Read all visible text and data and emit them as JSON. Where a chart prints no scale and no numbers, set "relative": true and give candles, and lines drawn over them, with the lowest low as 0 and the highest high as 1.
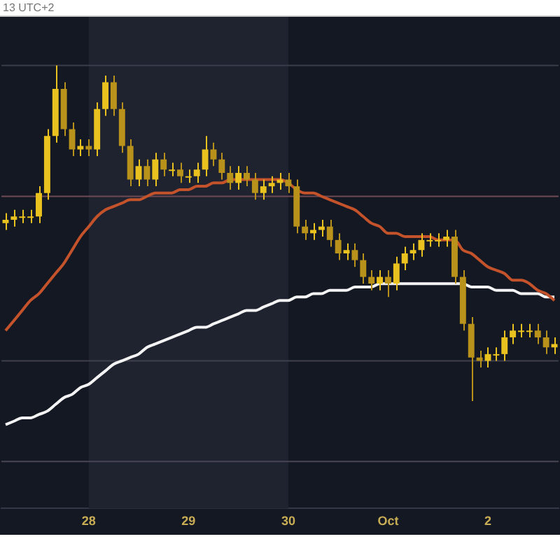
{
  "chart_data": {
    "type": "candlestick",
    "relative": true,
    "colors": [
      "#e9c21f",
      "#e9c21f",
      "#e9c21f",
      "#e9c21f",
      "#e9c21f",
      "#e9c21f",
      "#e9c21f",
      "#b8921a",
      "#b8921a",
      "#e9c21f",
      "#b8921a",
      "#e9c21f",
      "#e9c21f",
      "#b8921a",
      "#b8921a",
      "#b8921a",
      "#e9c21f",
      "#b8921a",
      "#e9c21f",
      "#b8921a",
      "#e9c21f",
      "#b8921a",
      "#e9c21f",
      "#e9c21f",
      "#e9c21f",
      "#b8921a",
      "#b8921a",
      "#b8921a",
      "#e9c21f",
      "#b8921a",
      "#b8921a",
      "#e9c21f",
      "#e9c21f",
      "#e9c21f",
      "#b8921a",
      "#b8921a",
      "#b8921a",
      "#e9c21f",
      "#e9c21f",
      "#b8921a",
      "#b8921a",
      "#e9c21f",
      "#b8921a",
      "#b8921a",
      "#b8921a",
      "#e9c21f",
      "#b8921a",
      "#e9c21f",
      "#e9c21f",
      "#e9c21f",
      "#e9c21f",
      "#e9c21f",
      "#e9c21f",
      "#e9c21f",
      "#b8921a",
      "#b8921a",
      "#b8921a",
      "#b8921a",
      "#e9c21f",
      "#e9c21f",
      "#e9c21f",
      "#e9c21f",
      "#e9c21f",
      "#e9c21f",
      "#b8921a",
      "#b8921a",
      "#e9c21f"
    ],
    "legend": false,
    "tick_labels": "x",
    "annotations": [
      "13 UTC+2"
    ],
    "categories": [
      null,
      null,
      null,
      null,
      null,
      null,
      null,
      null,
      null,
      null,
      "28",
      null,
      null,
      null,
      null,
      null,
      null,
      null,
      null,
      null,
      null,
      null,
      "29",
      null,
      null,
      null,
      null,
      null,
      null,
      null,
      null,
      null,
      null,
      null,
      "30",
      null,
      null,
      null,
      null,
      null,
      null,
      null,
      null,
      null,
      null,
      null,
      "Oct",
      null,
      null,
      null,
      null,
      null,
      null,
      null,
      null,
      null,
      null,
      null,
      "2",
      null,
      null,
      null,
      null,
      null,
      null,
      null,
      null
    ],
    "ohlc": [
      [
        0.53,
        0.56,
        0.51,
        0.54
      ],
      [
        0.54,
        0.57,
        0.52,
        0.55
      ],
      [
        0.55,
        0.57,
        0.53,
        0.55
      ],
      [
        0.55,
        0.57,
        0.53,
        0.55
      ],
      [
        0.55,
        0.64,
        0.53,
        0.62
      ],
      [
        0.62,
        0.81,
        0.6,
        0.79
      ],
      [
        0.79,
        1.0,
        0.77,
        0.93
      ],
      [
        0.93,
        0.95,
        0.79,
        0.81
      ],
      [
        0.81,
        0.83,
        0.73,
        0.75
      ],
      [
        0.75,
        0.78,
        0.73,
        0.76
      ],
      [
        0.76,
        0.78,
        0.73,
        0.75
      ],
      [
        0.75,
        0.89,
        0.73,
        0.87
      ],
      [
        0.87,
        0.97,
        0.85,
        0.95
      ],
      [
        0.95,
        0.97,
        0.85,
        0.87
      ],
      [
        0.87,
        0.89,
        0.74,
        0.76
      ],
      [
        0.76,
        0.78,
        0.64,
        0.66
      ],
      [
        0.66,
        0.72,
        0.64,
        0.7
      ],
      [
        0.7,
        0.72,
        0.64,
        0.66
      ],
      [
        0.66,
        0.74,
        0.64,
        0.72
      ],
      [
        0.72,
        0.74,
        0.67,
        0.69
      ],
      [
        0.69,
        0.71,
        0.67,
        0.69
      ],
      [
        0.69,
        0.71,
        0.65,
        0.67
      ],
      [
        0.67,
        0.69,
        0.65,
        0.67
      ],
      [
        0.67,
        0.71,
        0.65,
        0.69
      ],
      [
        0.69,
        0.79,
        0.67,
        0.75
      ],
      [
        0.75,
        0.77,
        0.7,
        0.72
      ],
      [
        0.72,
        0.74,
        0.66,
        0.68
      ],
      [
        0.68,
        0.7,
        0.63,
        0.65
      ],
      [
        0.65,
        0.7,
        0.63,
        0.68
      ],
      [
        0.68,
        0.7,
        0.64,
        0.66
      ],
      [
        0.66,
        0.68,
        0.6,
        0.62
      ],
      [
        0.62,
        0.66,
        0.6,
        0.64
      ],
      [
        0.64,
        0.67,
        0.62,
        0.65
      ],
      [
        0.65,
        0.68,
        0.63,
        0.66
      ],
      [
        0.66,
        0.68,
        0.62,
        0.64
      ],
      [
        0.64,
        0.66,
        0.5,
        0.52
      ],
      [
        0.52,
        0.54,
        0.48,
        0.5
      ],
      [
        0.5,
        0.53,
        0.48,
        0.51
      ],
      [
        0.51,
        0.54,
        0.49,
        0.52
      ],
      [
        0.52,
        0.54,
        0.46,
        0.48
      ],
      [
        0.48,
        0.5,
        0.42,
        0.44
      ],
      [
        0.44,
        0.47,
        0.42,
        0.45
      ],
      [
        0.45,
        0.47,
        0.4,
        0.42
      ],
      [
        0.42,
        0.44,
        0.35,
        0.37
      ],
      [
        0.37,
        0.39,
        0.33,
        0.35
      ],
      [
        0.35,
        0.39,
        0.33,
        0.37
      ],
      [
        0.37,
        0.39,
        0.31,
        0.35
      ],
      [
        0.35,
        0.43,
        0.33,
        0.41
      ],
      [
        0.41,
        0.46,
        0.39,
        0.44
      ],
      [
        0.44,
        0.47,
        0.42,
        0.45
      ],
      [
        0.45,
        0.5,
        0.43,
        0.48
      ],
      [
        0.48,
        0.5,
        0.46,
        0.48
      ],
      [
        0.48,
        0.5,
        0.46,
        0.48
      ],
      [
        0.48,
        0.51,
        0.46,
        0.49
      ],
      [
        0.49,
        0.51,
        0.35,
        0.37
      ],
      [
        0.37,
        0.39,
        0.21,
        0.23
      ],
      [
        0.23,
        0.25,
        0,
        0.13
      ],
      [
        0.13,
        0.15,
        0.1,
        0.12
      ],
      [
        0.12,
        0.16,
        0.1,
        0.14
      ],
      [
        0.14,
        0.16,
        0.12,
        0.14
      ],
      [
        0.14,
        0.21,
        0.12,
        0.19
      ],
      [
        0.19,
        0.23,
        0.17,
        0.21
      ],
      [
        0.21,
        0.23,
        0.19,
        0.21
      ],
      [
        0.21,
        0.23,
        0.19,
        0.21
      ],
      [
        0.21,
        0.23,
        0.17,
        0.19
      ],
      [
        0.19,
        0.21,
        0.14,
        0.16
      ],
      [
        0.16,
        0.19,
        0.14,
        0.17
      ]
    ],
    "series": [
      {
        "type": "line",
        "color": "#c4532b",
        "values": [
          0.21,
          0.24,
          0.27,
          0.3,
          0.32,
          0.35,
          0.38,
          0.41,
          0.45,
          0.49,
          0.52,
          0.55,
          0.57,
          0.58,
          0.59,
          0.6,
          0.6,
          0.61,
          0.62,
          0.62,
          0.62,
          0.63,
          0.63,
          0.64,
          0.64,
          0.65,
          0.65,
          0.66,
          0.66,
          0.66,
          0.66,
          0.66,
          0.66,
          0.66,
          0.65,
          0.63,
          0.62,
          0.62,
          0.61,
          0.6,
          0.59,
          0.58,
          0.57,
          0.55,
          0.53,
          0.52,
          0.5,
          0.5,
          0.49,
          0.49,
          0.49,
          0.49,
          0.48,
          0.48,
          0.48,
          0.45,
          0.44,
          0.42,
          0.4,
          0.39,
          0.38,
          0.36,
          0.36,
          0.35,
          0.33,
          0.32,
          0.3
        ]
      },
      {
        "type": "line",
        "color": "#f4f4f4",
        "values": [
          -0.07,
          -0.06,
          -0.05,
          -0.05,
          -0.04,
          -0.03,
          -0.01,
          0.01,
          0.02,
          0.04,
          0.05,
          0.07,
          0.09,
          0.11,
          0.12,
          0.13,
          0.14,
          0.16,
          0.17,
          0.18,
          0.19,
          0.2,
          0.21,
          0.22,
          0.22,
          0.23,
          0.24,
          0.25,
          0.26,
          0.27,
          0.27,
          0.28,
          0.29,
          0.3,
          0.3,
          0.31,
          0.31,
          0.32,
          0.32,
          0.33,
          0.33,
          0.33,
          0.34,
          0.34,
          0.34,
          0.35,
          0.35,
          0.35,
          0.35,
          0.35,
          0.35,
          0.35,
          0.35,
          0.35,
          0.35,
          0.35,
          0.34,
          0.34,
          0.34,
          0.33,
          0.33,
          0.33,
          0.32,
          0.32,
          0.32,
          0.31,
          0.31
        ]
      }
    ],
    "ref_lines": [
      {
        "axis": "y",
        "value": 1.0,
        "color": "#3a3d4a"
      },
      {
        "axis": "y",
        "value": 0.61,
        "color": "#6e4a55"
      },
      {
        "axis": "y",
        "value": 0.12,
        "color": "#3f404c"
      },
      {
        "axis": "y",
        "value": -0.18,
        "color": "#4a4456"
      }
    ],
    "bands": [
      {
        "axis": "x",
        "from": "28",
        "to": "30",
        "color": "#1f2330"
      }
    ]
  }
}
